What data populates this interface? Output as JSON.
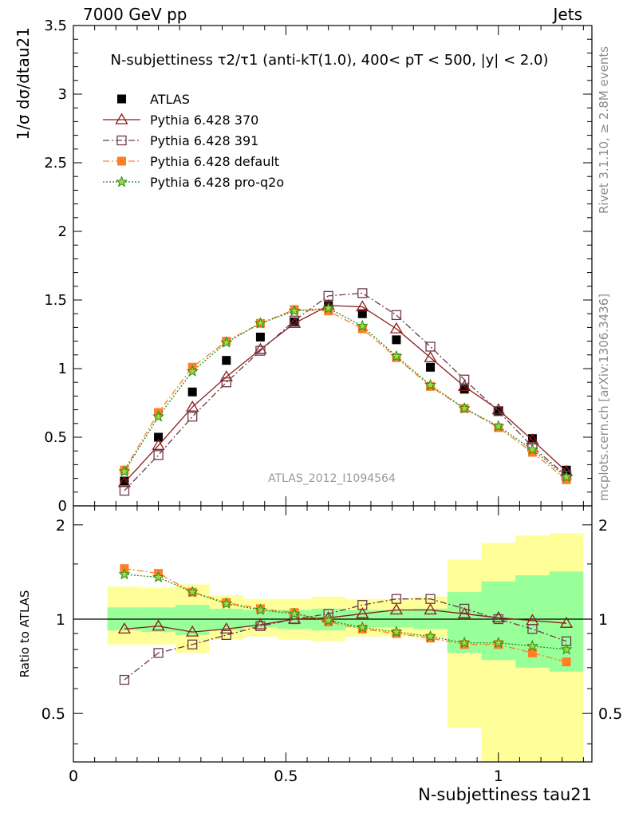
{
  "header": {
    "left": "7000 GeV pp",
    "right": "Jets"
  },
  "side_labels": {
    "rivet": "Rivet 3.1.10, ≥ 2.8M events",
    "mcplots": "mcplots.cern.ch [arXiv:1306.3436]"
  },
  "chart_data": [
    {
      "type": "scatter",
      "title": "N-subjettiness τ2/τ1 (anti-kT(1.0), 400< pT < 500, |y| < 2.0)",
      "ylabel": "1/σ dσ/dtau21",
      "xlabel": "N-subjettiness tau21",
      "xlim": [
        0,
        1.22
      ],
      "ylim": [
        0,
        3.5
      ],
      "yticks": [
        "0",
        "0.5",
        "1",
        "1.5",
        "2",
        "2.5",
        "3",
        "3.5"
      ],
      "watermark": "ATLAS_2012_I1094564",
      "legend_position": "top-left",
      "x": [
        0.12,
        0.2,
        0.28,
        0.36,
        0.44,
        0.52,
        0.6,
        0.68,
        0.76,
        0.84,
        0.92,
        1.0,
        1.08,
        1.16
      ],
      "series": [
        {
          "name": "ATLAS",
          "color": "#000000",
          "marker": "filled-square",
          "line": "none",
          "values": [
            0.18,
            0.5,
            0.83,
            1.06,
            1.23,
            1.34,
            1.46,
            1.4,
            1.21,
            1.01,
            0.85,
            0.69,
            0.49,
            0.26
          ]
        },
        {
          "name": "Pythia 6.428 370",
          "color": "#8b1a1a",
          "marker": "open-triangle",
          "line": "solid",
          "values": [
            0.17,
            0.44,
            0.72,
            0.94,
            1.14,
            1.33,
            1.46,
            1.45,
            1.29,
            1.08,
            0.87,
            0.7,
            0.48,
            0.25
          ]
        },
        {
          "name": "Pythia 6.428 391",
          "color": "#6b3a4b",
          "marker": "open-square",
          "line": "dashdot",
          "values": [
            0.11,
            0.37,
            0.65,
            0.9,
            1.13,
            1.35,
            1.53,
            1.55,
            1.39,
            1.16,
            0.92,
            0.69,
            0.43,
            0.22
          ]
        },
        {
          "name": "Pythia 6.428 default",
          "color": "#ff7f27",
          "marker": "filled-square",
          "line": "dashdot",
          "values": [
            0.26,
            0.68,
            1.01,
            1.2,
            1.33,
            1.43,
            1.42,
            1.29,
            1.08,
            0.87,
            0.71,
            0.57,
            0.39,
            0.19
          ]
        },
        {
          "name": "Pythia 6.428 pro-q2o",
          "color": "#1e8c1e",
          "marker": "star",
          "line": "dotted",
          "values": [
            0.25,
            0.65,
            0.98,
            1.19,
            1.33,
            1.42,
            1.44,
            1.31,
            1.09,
            0.88,
            0.71,
            0.58,
            0.41,
            0.21
          ]
        }
      ]
    },
    {
      "type": "scatter",
      "ylabel": "Ratio to ATLAS",
      "xlabel": "N-subjettiness tau21",
      "xlim": [
        0,
        1.22
      ],
      "ylim": [
        0.35,
        2.3
      ],
      "yticks": [
        "0.5",
        "1",
        "2"
      ],
      "xticks": [
        "0",
        "0.5",
        "1"
      ],
      "x": [
        0.12,
        0.2,
        0.28,
        0.36,
        0.44,
        0.52,
        0.6,
        0.68,
        0.76,
        0.84,
        0.92,
        1.0,
        1.08,
        1.16
      ],
      "bin_edges": [
        0.08,
        0.16,
        0.24,
        0.32,
        0.4,
        0.48,
        0.56,
        0.64,
        0.72,
        0.8,
        0.88,
        0.96,
        1.04,
        1.12,
        1.2
      ],
      "band_stat": {
        "lo": [
          0.92,
          0.91,
          0.89,
          0.92,
          0.94,
          0.93,
          0.92,
          0.94,
          0.94,
          0.93,
          0.78,
          0.74,
          0.7,
          0.68
        ],
        "hi": [
          1.09,
          1.09,
          1.11,
          1.08,
          1.07,
          1.07,
          1.08,
          1.07,
          1.07,
          1.08,
          1.22,
          1.32,
          1.38,
          1.42
        ]
      },
      "band_total": {
        "lo": [
          0.83,
          0.83,
          0.78,
          0.86,
          0.88,
          0.86,
          0.85,
          0.88,
          0.88,
          0.87,
          0.45,
          0.35,
          0.35,
          0.35
        ],
        "hi": [
          1.27,
          1.26,
          1.29,
          1.19,
          1.16,
          1.16,
          1.18,
          1.16,
          1.16,
          1.18,
          1.55,
          1.75,
          1.85,
          1.88
        ]
      },
      "series": [
        {
          "name": "Pythia 6.428 370",
          "color": "#8b1a1a",
          "marker": "open-triangle",
          "line": "solid",
          "values": [
            0.93,
            0.95,
            0.91,
            0.93,
            0.96,
            1.0,
            1.01,
            1.04,
            1.07,
            1.07,
            1.04,
            1.01,
            0.99,
            0.97
          ]
        },
        {
          "name": "Pythia 6.428 391",
          "color": "#6b3a4b",
          "marker": "open-square",
          "line": "dashdot",
          "values": [
            0.64,
            0.78,
            0.83,
            0.89,
            0.95,
            1.0,
            1.04,
            1.11,
            1.16,
            1.16,
            1.08,
            1.0,
            0.93,
            0.85
          ]
        },
        {
          "name": "Pythia 6.428 default",
          "color": "#ff7f27",
          "marker": "filled-square",
          "line": "dashdot",
          "values": [
            1.45,
            1.4,
            1.22,
            1.13,
            1.08,
            1.05,
            0.98,
            0.93,
            0.9,
            0.87,
            0.83,
            0.83,
            0.78,
            0.73
          ]
        },
        {
          "name": "Pythia 6.428 pro-q2o",
          "color": "#1e8c1e",
          "marker": "star",
          "line": "dotted",
          "values": [
            1.39,
            1.36,
            1.22,
            1.12,
            1.07,
            1.04,
            0.99,
            0.94,
            0.91,
            0.88,
            0.84,
            0.84,
            0.82,
            0.8
          ]
        }
      ]
    }
  ]
}
